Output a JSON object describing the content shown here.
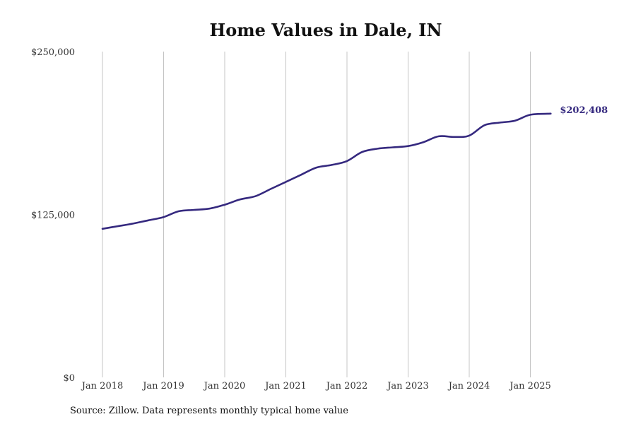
{
  "chart_data": {
    "type": "line",
    "title": "Home Values in Dale, IN",
    "source": "Source: Zillow. Data represents monthly typical home value",
    "ylim": [
      0,
      250000
    ],
    "yticks": [
      {
        "value": 0,
        "label": "$0"
      },
      {
        "value": 125000,
        "label": "$125,000"
      },
      {
        "value": 250000,
        "label": "$250,000"
      }
    ],
    "xlim": [
      "2018-01",
      "2025-05"
    ],
    "xticks": [
      {
        "date": "2018-01",
        "label": "Jan 2018"
      },
      {
        "date": "2019-01",
        "label": "Jan 2019"
      },
      {
        "date": "2020-01",
        "label": "Jan 2020"
      },
      {
        "date": "2021-01",
        "label": "Jan 2021"
      },
      {
        "date": "2022-01",
        "label": "Jan 2022"
      },
      {
        "date": "2023-01",
        "label": "Jan 2023"
      },
      {
        "date": "2024-01",
        "label": "Jan 2024"
      },
      {
        "date": "2025-01",
        "label": "Jan 2025"
      }
    ],
    "grid": "vertical",
    "line_color": "#35297f",
    "end_label": "$202,408",
    "series": [
      {
        "values": [
          {
            "date": "2018-01",
            "value": 114000
          },
          {
            "date": "2018-04",
            "value": 116000
          },
          {
            "date": "2018-07",
            "value": 118000
          },
          {
            "date": "2018-10",
            "value": 120500
          },
          {
            "date": "2019-01",
            "value": 123000
          },
          {
            "date": "2019-04",
            "value": 127500
          },
          {
            "date": "2019-07",
            "value": 128500
          },
          {
            "date": "2019-10",
            "value": 129500
          },
          {
            "date": "2020-01",
            "value": 132500
          },
          {
            "date": "2020-04",
            "value": 136500
          },
          {
            "date": "2020-07",
            "value": 139000
          },
          {
            "date": "2020-10",
            "value": 144500
          },
          {
            "date": "2021-01",
            "value": 150000
          },
          {
            "date": "2021-04",
            "value": 155500
          },
          {
            "date": "2021-07",
            "value": 161000
          },
          {
            "date": "2021-10",
            "value": 163000
          },
          {
            "date": "2022-01",
            "value": 166000
          },
          {
            "date": "2022-04",
            "value": 173000
          },
          {
            "date": "2022-07",
            "value": 175500
          },
          {
            "date": "2022-10",
            "value": 176500
          },
          {
            "date": "2023-01",
            "value": 177500
          },
          {
            "date": "2023-04",
            "value": 180500
          },
          {
            "date": "2023-07",
            "value": 185000
          },
          {
            "date": "2023-10",
            "value": 184500
          },
          {
            "date": "2024-01",
            "value": 185500
          },
          {
            "date": "2024-04",
            "value": 193500
          },
          {
            "date": "2024-07",
            "value": 195500
          },
          {
            "date": "2024-10",
            "value": 197000
          },
          {
            "date": "2025-01",
            "value": 201500
          },
          {
            "date": "2025-05",
            "value": 202408
          }
        ]
      }
    ]
  }
}
